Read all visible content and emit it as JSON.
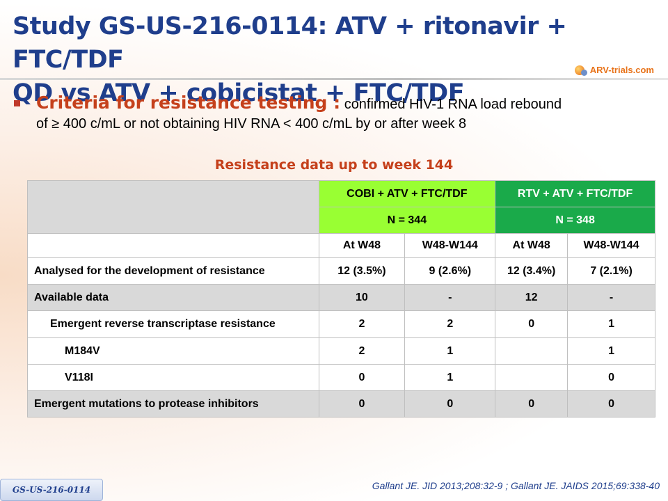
{
  "slide": {
    "title_line1": "Study GS-US-216-0114: ATV + ritonavir + FTC/TDF",
    "title_line2": "QD vs ATV + cobicistat + FTC/TDF",
    "logo_text": "ARV-trials.com",
    "bullet": {
      "label": "Criteria for resistance testing :",
      "text_line1": "confirmed HIV-1 RNA load rebound",
      "text_line2": "of ≥ 400 c/mL or not obtaining HIV RNA  < 400 c/mL by or after week 8"
    },
    "subheading": "Resistance data up to week 144",
    "footer_tag": "GS-US-216-0114",
    "citation": "Gallant JE. JID 2013;208:32-9 ; Gallant JE. JAIDS 2015;69:338-40"
  },
  "table": {
    "groups": [
      {
        "name": "COBI + ATV + FTC/TDF",
        "n": "N = 344"
      },
      {
        "name": "RTV + ATV + FTC/TDF",
        "n": "N = 348"
      }
    ],
    "subheaders": [
      "At W48",
      "W48-W144",
      "At W48",
      "W48-W144"
    ],
    "rows": [
      {
        "label": "Analysed for the development of resistance",
        "values": [
          "12 (3.5%)",
          "9 (2.6%)",
          "12 (3.4%)",
          "7 (2.1%)"
        ]
      },
      {
        "label": "Available data",
        "values": [
          "10",
          "-",
          "12",
          "-"
        ]
      },
      {
        "label": "Emergent reverse transcriptase resistance",
        "values": [
          "2",
          "2",
          "0",
          "1"
        ]
      },
      {
        "label": "M184V",
        "values": [
          "2",
          "1",
          "",
          "1"
        ]
      },
      {
        "label": "V118I",
        "values": [
          "0",
          "1",
          "",
          "0"
        ]
      },
      {
        "label": "Emergent mutations to protease inhibitors",
        "values": [
          "0",
          "0",
          "0",
          "0"
        ]
      }
    ]
  },
  "colors": {
    "title": "#1f3e8c",
    "accent": "#c5401b",
    "cobi_header": "#99ff33",
    "rtv_header": "#1aaa4a",
    "grey_row": "#d9d9d9"
  }
}
